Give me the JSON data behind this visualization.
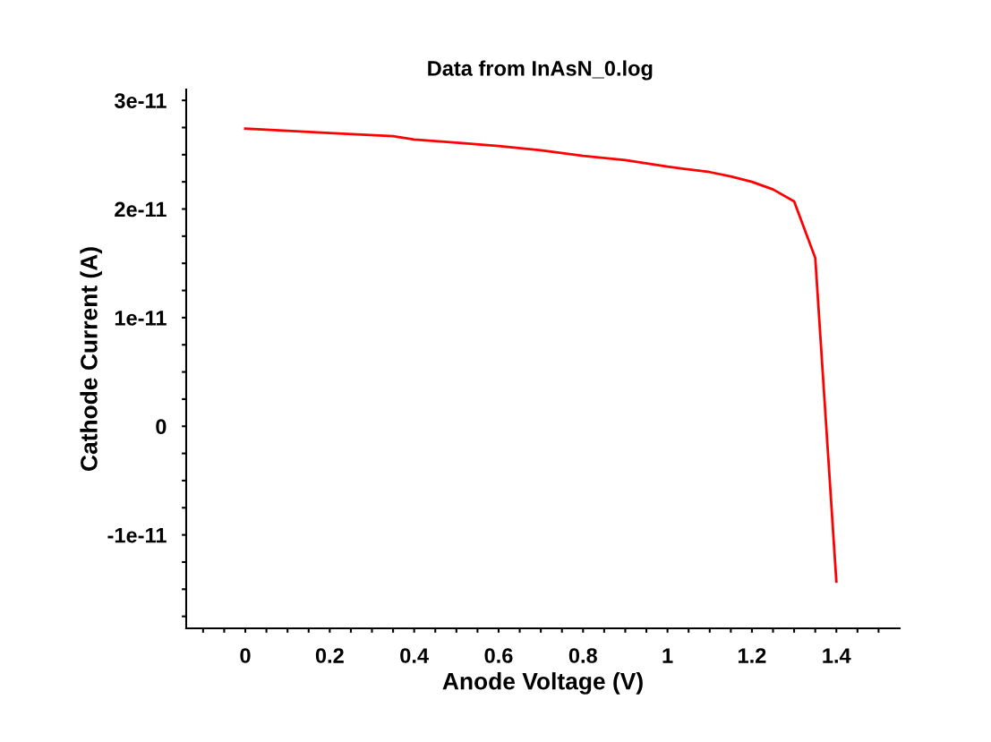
{
  "chart_data": {
    "type": "line",
    "subtitle": "Data from InAsN_0.log",
    "xlabel": "Anode Voltage (V)",
    "ylabel": "Cathode Current (A)",
    "x": [
      0,
      0.1,
      0.2,
      0.35,
      0.4,
      0.5,
      0.6,
      0.7,
      0.8,
      0.9,
      1.0,
      1.1,
      1.15,
      1.2,
      1.25,
      1.3,
      1.35,
      1.4
    ],
    "series": [
      {
        "color": "#ff0000",
        "values": [
          2.74e-11,
          2.72e-11,
          2.7e-11,
          2.67e-11,
          2.64e-11,
          2.61e-11,
          2.58e-11,
          2.54e-11,
          2.49e-11,
          2.45e-11,
          2.39e-11,
          2.34e-11,
          2.3e-11,
          2.25e-11,
          2.18e-11,
          2.07e-11,
          1.55e-11,
          -1.43e-11
        ]
      }
    ],
    "xlim": [
      -0.14,
      1.55
    ],
    "xticks": [
      {
        "value": -0.1,
        "label": null
      },
      {
        "value": -0.05,
        "label": null
      },
      0,
      {
        "value": 0.05,
        "label": null
      },
      {
        "value": 0.1,
        "label": null
      },
      {
        "value": 0.15,
        "label": null
      },
      0.2,
      {
        "value": 0.25,
        "label": null
      },
      {
        "value": 0.3,
        "label": null
      },
      {
        "value": 0.35,
        "label": null
      },
      0.4,
      {
        "value": 0.45,
        "label": null
      },
      {
        "value": 0.5,
        "label": null
      },
      {
        "value": 0.55,
        "label": null
      },
      0.6,
      {
        "value": 0.65,
        "label": null
      },
      {
        "value": 0.7,
        "label": null
      },
      {
        "value": 0.75,
        "label": null
      },
      0.8,
      {
        "value": 0.85,
        "label": null
      },
      {
        "value": 0.9,
        "label": null
      },
      {
        "value": 0.95,
        "label": null
      },
      1,
      {
        "value": 1.05,
        "label": null
      },
      {
        "value": 1.1,
        "label": null
      },
      {
        "value": 1.15,
        "label": null
      },
      1.2,
      {
        "value": 1.25,
        "label": null
      },
      {
        "value": 1.3,
        "label": null
      },
      {
        "value": 1.35,
        "label": null
      },
      1.4,
      {
        "value": 1.45,
        "label": null
      },
      {
        "value": 1.5,
        "label": null
      }
    ],
    "ylim": [
      -1.86e-11,
      3.1e-11
    ],
    "yticks": [
      {
        "value": -1.75e-11,
        "label": null
      },
      {
        "value": -1.5e-11,
        "label": null
      },
      {
        "value": -1.25e-11,
        "label": null
      },
      {
        "value": -1e-11,
        "label": "-1e-11"
      },
      {
        "value": -7.5e-12,
        "label": null
      },
      {
        "value": -5e-12,
        "label": null
      },
      {
        "value": -2.5e-12,
        "label": null
      },
      0,
      {
        "value": 2.5e-12,
        "label": null
      },
      {
        "value": 5e-12,
        "label": null
      },
      {
        "value": 7.5e-12,
        "label": null
      },
      {
        "value": 1e-11,
        "label": "1e-11"
      },
      {
        "value": 1.25e-11,
        "label": null
      },
      {
        "value": 1.5e-11,
        "label": null
      },
      {
        "value": 1.75e-11,
        "label": null
      },
      {
        "value": 2e-11,
        "label": "2e-11"
      },
      {
        "value": 2.25e-11,
        "label": null
      },
      {
        "value": 2.5e-11,
        "label": null
      },
      {
        "value": 2.75e-11,
        "label": null
      },
      {
        "value": 3e-11,
        "label": "3e-11"
      }
    ],
    "grid": false,
    "legend": false,
    "line_style": "solid",
    "marker": "none"
  }
}
